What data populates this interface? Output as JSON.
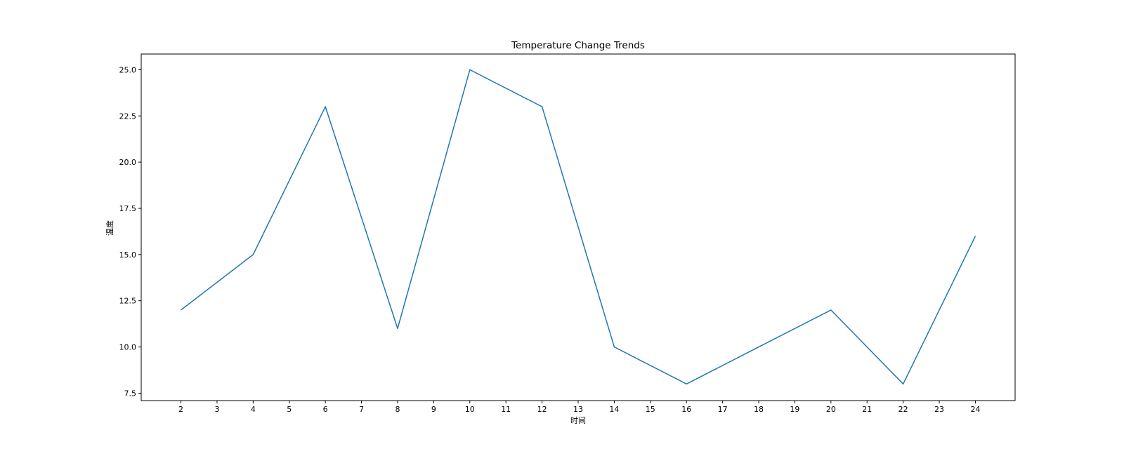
{
  "chart_data": {
    "type": "line",
    "title": "Temperature Change Trends",
    "xlabel": "时间",
    "ylabel": "温度",
    "x_ticks": [
      2,
      3,
      4,
      5,
      6,
      7,
      8,
      9,
      10,
      11,
      12,
      13,
      14,
      15,
      16,
      17,
      18,
      19,
      20,
      21,
      22,
      23,
      24
    ],
    "y_ticks": [
      "7.5",
      "10.0",
      "12.5",
      "15.0",
      "17.5",
      "20.0",
      "22.5",
      "25.0"
    ],
    "xlim": [
      0.9,
      25.1
    ],
    "ylim": [
      7.1,
      25.85
    ],
    "grid": false,
    "series": [
      {
        "color": "#1f77b4",
        "x": [
          2,
          4,
          6,
          8,
          10,
          12,
          14,
          16,
          18,
          20,
          22,
          24
        ],
        "y": [
          12,
          15,
          23,
          11,
          25,
          23,
          10,
          8,
          10,
          12,
          8,
          16
        ]
      }
    ]
  }
}
